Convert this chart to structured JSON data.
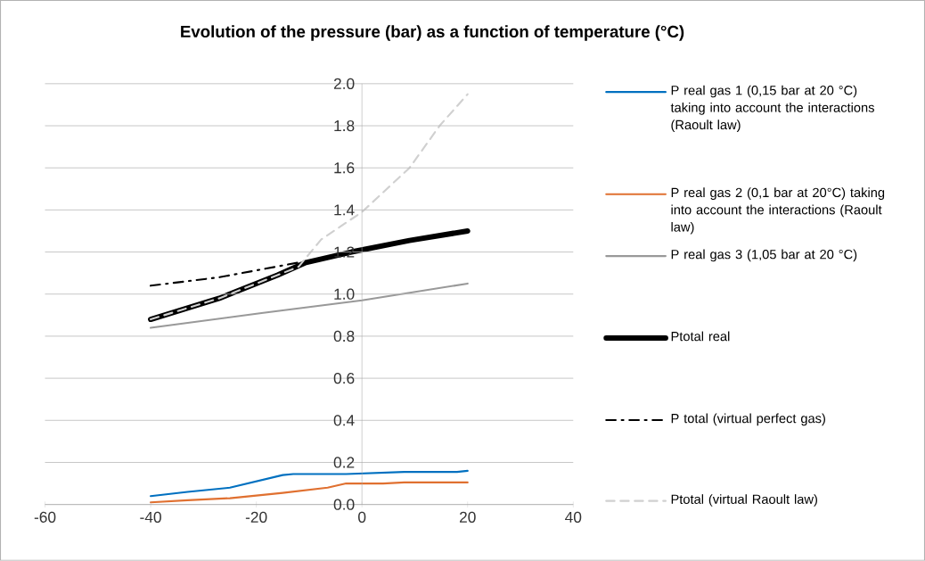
{
  "chart_data": {
    "type": "line",
    "title": "Evolution of the pressure (bar) as a function of temperature (°C)",
    "xlim": [
      -60,
      40
    ],
    "xticks": [
      -60,
      -40,
      -20,
      0,
      20,
      40
    ],
    "ylim": [
      0,
      2
    ],
    "yticks": [
      {
        "value": 0,
        "label": "0.0"
      },
      0.2,
      0.4,
      0.6,
      0.8,
      {
        "value": 1,
        "label": "1.0"
      },
      1.2,
      1.4,
      1.6,
      1.8,
      {
        "value": 2,
        "label": "2.0"
      }
    ],
    "grid": "y",
    "legend": "right",
    "marker": "none",
    "series": [
      {
        "name": "P real gas 1 (0,15 bar at 20 °C) taking into account the interactions (Raoult law)",
        "color": "#0070c0",
        "line_style": "solid",
        "x": [
          -40,
          -33,
          -25,
          -15,
          -13,
          -3,
          8,
          18,
          20
        ],
        "values": [
          0.04,
          0.06,
          0.08,
          0.14,
          0.145,
          0.145,
          0.155,
          0.155,
          0.16
        ]
      },
      {
        "name": "P real gas 2 (0,1 bar at 20°C) taking into account the interactions (Raoult law)",
        "color": "#e07030",
        "line_style": "solid",
        "x": [
          -40,
          -33,
          -25,
          -15,
          -6.5,
          -3,
          4,
          8,
          20
        ],
        "values": [
          0.01,
          0.02,
          0.03,
          0.055,
          0.08,
          0.1,
          0.1,
          0.105,
          0.105
        ]
      },
      {
        "name": "P real gas 3 (1,05 bar at 20 °C)",
        "color": "#999999",
        "line_style": "solid",
        "x": [
          -40,
          -19,
          0,
          20
        ],
        "values": [
          0.84,
          0.91,
          0.97,
          1.05
        ]
      },
      {
        "name": "Ptotal real",
        "color": "#000000",
        "line_style": "solid",
        "x": [
          -40,
          -27,
          -16,
          -10.6,
          -2,
          9,
          20
        ],
        "values": [
          0.88,
          0.98,
          1.09,
          1.15,
          1.2,
          1.255,
          1.3
        ]
      },
      {
        "name": "P total (virtual perfect gas)",
        "color": "#000000",
        "line_style": "dashdot",
        "x": [
          -40,
          -27,
          -12
        ],
        "values": [
          1.04,
          1.08,
          1.15
        ]
      },
      {
        "name": "Ptotal (virtual Raoult law)",
        "color": "#d0d0d0",
        "line_style": "dashed",
        "x": [
          -40,
          -27,
          -16,
          -12,
          -7.7,
          0,
          9,
          14.7,
          20
        ],
        "values": [
          0.88,
          0.98,
          1.09,
          1.13,
          1.26,
          1.39,
          1.6,
          1.8,
          1.95
        ]
      }
    ]
  }
}
